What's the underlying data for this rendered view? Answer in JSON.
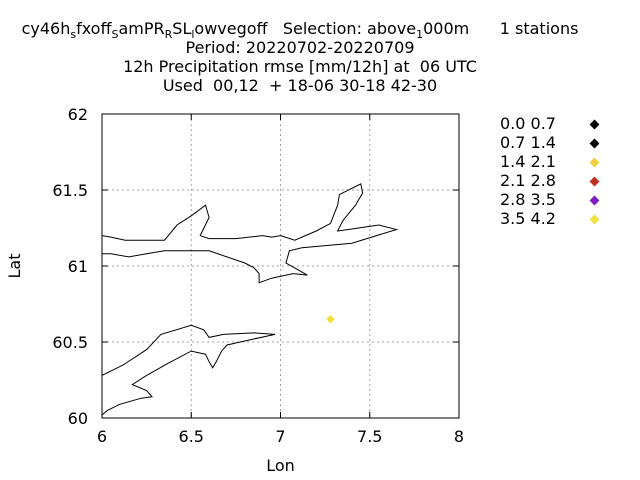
{
  "titles": {
    "line1_main": "cy46h",
    "line1_sub1": "s",
    "line1_mid1": "fxoff",
    "line1_sub2": "S",
    "line1_mid2": "amPR",
    "line1_sub3": "R",
    "line1_mid3": "SL",
    "line1_sub4": "l",
    "line1_mid4": "owvegoff   Selection: above",
    "line1_sub5": "1",
    "line1_mid5": "000m      1 stations",
    "line2": "Period: 20220702-20220709",
    "line3": "12h Precipitation rmse [mm/12h] at  06 UTC",
    "line4": "Used  00,12  + 18-06 30-18 42-30"
  },
  "chart_data": {
    "type": "scatter",
    "xlabel": "Lon",
    "ylabel": "Lat",
    "xlim": [
      6,
      8
    ],
    "ylim": [
      60,
      62
    ],
    "xticks": [
      "6",
      "6.5",
      "7",
      "7.5",
      "8"
    ],
    "yticks": [
      "60",
      "60.5",
      "61",
      "61.5",
      "62"
    ],
    "grid": true,
    "legend_position": "right",
    "legend": [
      {
        "label": "0.0 0.7",
        "color": "#000000"
      },
      {
        "label": "0.7 1.4",
        "color": "#000000"
      },
      {
        "label": "1.4 2.1",
        "color": "#f0d040"
      },
      {
        "label": "2.1 2.8",
        "color": "#c03020"
      },
      {
        "label": "2.8 3.5",
        "color": "#8020c0"
      },
      {
        "label": "3.5 4.2",
        "color": "#f0e040"
      }
    ],
    "points": [
      {
        "x": 7.28,
        "y": 60.65,
        "color": "#f0e040"
      }
    ],
    "coastlines": [
      [
        [
          6.0,
          61.2
        ],
        [
          6.05,
          61.19
        ],
        [
          6.13,
          61.17
        ],
        [
          6.35,
          61.17
        ],
        [
          6.42,
          61.27
        ],
        [
          6.5,
          61.33
        ],
        [
          6.58,
          61.4
        ],
        [
          6.6,
          61.32
        ],
        [
          6.55,
          61.2
        ],
        [
          6.6,
          61.18
        ],
        [
          6.75,
          61.18
        ],
        [
          6.9,
          61.2
        ],
        [
          6.95,
          61.19
        ],
        [
          7.0,
          61.2
        ],
        [
          7.08,
          61.17
        ],
        [
          7.2,
          61.23
        ],
        [
          7.28,
          61.28
        ],
        [
          7.32,
          61.4
        ],
        [
          7.33,
          61.47
        ],
        [
          7.45,
          61.54
        ],
        [
          7.46,
          61.48
        ],
        [
          7.42,
          61.4
        ],
        [
          7.35,
          61.3
        ],
        [
          7.32,
          61.23
        ],
        [
          7.38,
          61.24
        ],
        [
          7.55,
          61.27
        ],
        [
          7.65,
          61.24
        ],
        [
          7.4,
          61.15
        ],
        [
          7.12,
          61.12
        ],
        [
          7.05,
          61.1
        ],
        [
          7.03,
          61.02
        ],
        [
          7.15,
          60.94
        ],
        [
          7.07,
          60.95
        ],
        [
          6.95,
          60.92
        ],
        [
          6.88,
          60.89
        ],
        [
          6.88,
          60.95
        ],
        [
          6.85,
          60.99
        ],
        [
          6.8,
          61.02
        ],
        [
          6.6,
          61.1
        ],
        [
          6.35,
          61.1
        ],
        [
          6.25,
          61.08
        ],
        [
          6.15,
          61.06
        ],
        [
          6.05,
          61.08
        ],
        [
          6.0,
          61.08
        ]
      ],
      [
        [
          6.0,
          60.28
        ],
        [
          6.12,
          60.35
        ],
        [
          6.25,
          60.45
        ],
        [
          6.33,
          60.55
        ],
        [
          6.5,
          60.61
        ],
        [
          6.57,
          60.58
        ],
        [
          6.6,
          60.53
        ],
        [
          6.68,
          60.55
        ],
        [
          6.85,
          60.56
        ],
        [
          6.97,
          60.55
        ],
        [
          6.85,
          60.52
        ],
        [
          6.7,
          60.48
        ],
        [
          6.67,
          60.44
        ],
        [
          6.64,
          60.37
        ],
        [
          6.62,
          60.33
        ],
        [
          6.6,
          60.37
        ],
        [
          6.58,
          60.42
        ],
        [
          6.5,
          60.44
        ],
        [
          6.37,
          60.36
        ],
        [
          6.25,
          60.28
        ],
        [
          6.17,
          60.22
        ],
        [
          6.25,
          60.18
        ],
        [
          6.28,
          60.14
        ],
        [
          6.22,
          60.13
        ],
        [
          6.1,
          60.09
        ],
        [
          6.03,
          60.05
        ],
        [
          6.0,
          60.02
        ]
      ]
    ]
  }
}
